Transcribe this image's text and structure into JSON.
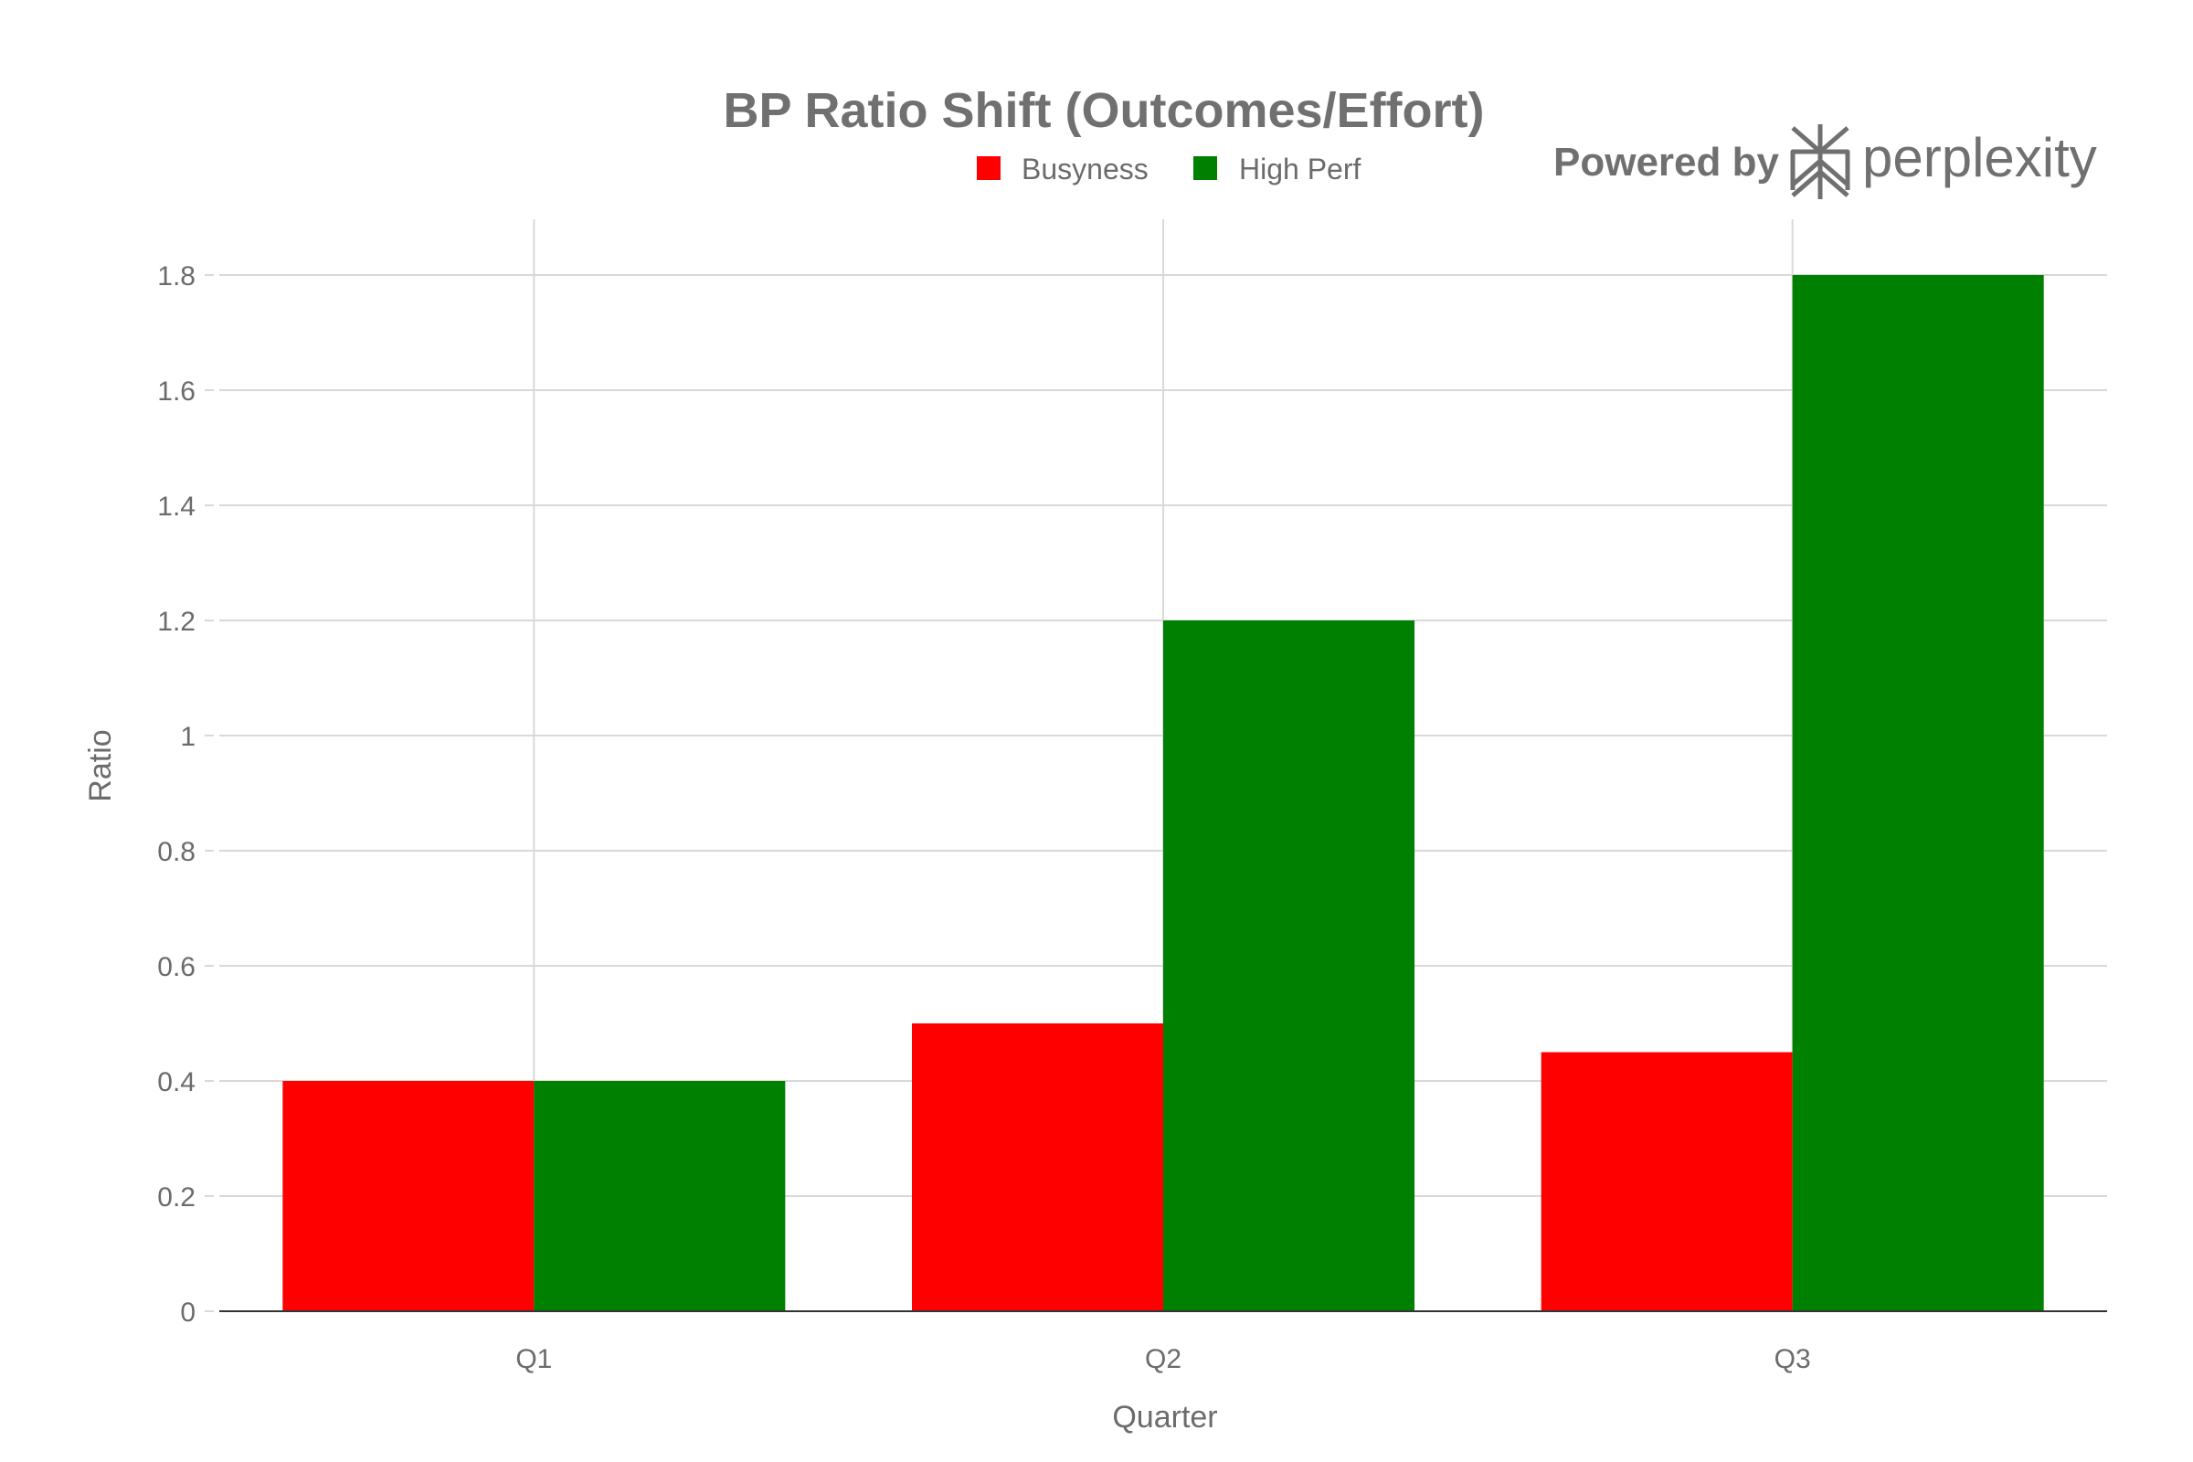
{
  "chart_data": {
    "type": "bar",
    "title": "BP Ratio Shift (Outcomes/Effort)",
    "xlabel": "Quarter",
    "ylabel": "Ratio",
    "categories": [
      "Q1",
      "Q2",
      "Q3"
    ],
    "series": [
      {
        "name": "Busyness",
        "values": [
          0.4,
          0.5,
          0.45
        ],
        "color": "#ff0000"
      },
      {
        "name": "High Perf",
        "values": [
          0.4,
          1.2,
          1.8
        ],
        "color": "#008000"
      }
    ],
    "ylim": [
      0,
      1.9
    ],
    "yticks": [
      0,
      0.2,
      0.4,
      0.6,
      0.8,
      1,
      1.2,
      1.4,
      1.6,
      1.8
    ],
    "ytick_labels": [
      "0",
      "0.2",
      "0.4",
      "0.6",
      "0.8",
      "1",
      "1.2",
      "1.4",
      "1.6",
      "1.8"
    ],
    "grid": true,
    "legend_position": "top-center"
  },
  "branding": {
    "prefix": "Powered by",
    "name": "perplexity",
    "logo_icon": "perplexity-logo-icon"
  }
}
